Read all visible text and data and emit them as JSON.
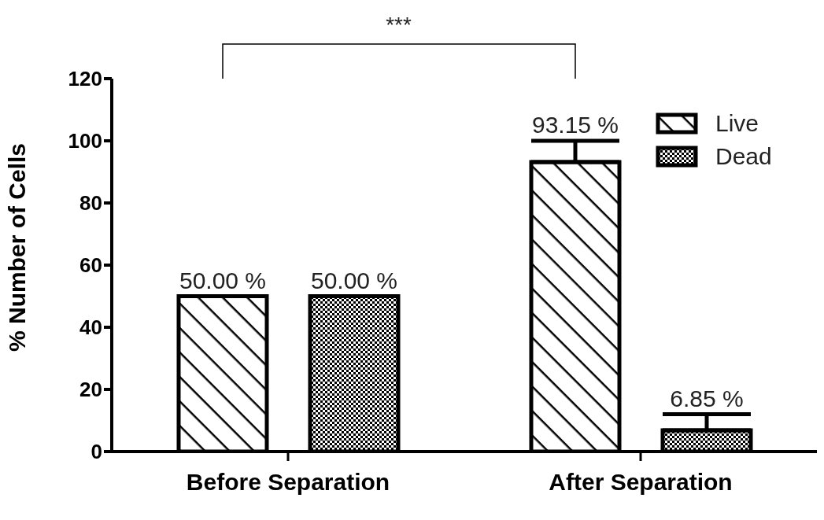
{
  "chart_data": {
    "type": "bar",
    "ylabel": "% Number of Cells",
    "categories": [
      "Before Separation",
      "After Separation"
    ],
    "series": [
      {
        "name": "Live",
        "color": "#000000",
        "values": [
          50,
          93.15
        ],
        "errors": [
          null,
          [
            93.15,
            100
          ]
        ],
        "value_labels": [
          "50.00 %",
          "93.15 %"
        ]
      },
      {
        "name": "Dead",
        "color": "#000000",
        "values": [
          50,
          6.85
        ],
        "errors": [
          null,
          [
            6.85,
            12
          ]
        ],
        "value_labels": [
          "50.00 %",
          "6.85 %"
        ]
      }
    ],
    "ylim": [
      0,
      120
    ],
    "yticks": [
      0,
      20,
      40,
      60,
      80,
      100,
      120
    ],
    "grid": false,
    "legend": "top right",
    "annotations": [
      "***"
    ]
  }
}
